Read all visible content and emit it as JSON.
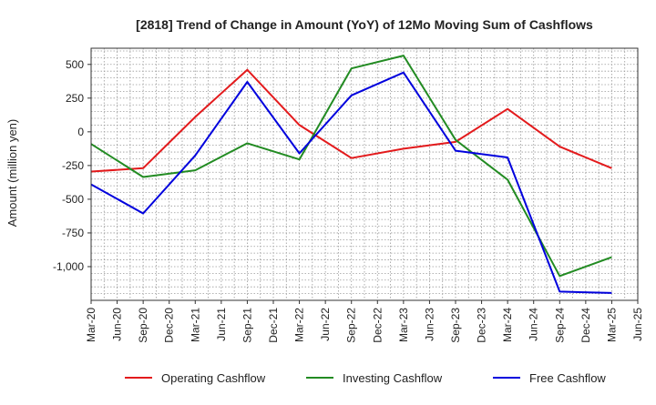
{
  "chart_data": {
    "type": "line",
    "title": "[2818]  Trend of Change in Amount (YoY) of 12Mo Moving Sum of Cashflows",
    "xlabel": "",
    "ylabel": "Amount (million yen)",
    "ylim": [
      -1250,
      620
    ],
    "yticks": [
      500,
      250,
      0,
      -250,
      -500,
      -750,
      -1000
    ],
    "ytick_labels": [
      "500",
      "250",
      "0",
      "-250",
      "-500",
      "-750",
      "-1,000"
    ],
    "categories": [
      "Mar-20",
      "Jun-20",
      "Sep-20",
      "Dec-20",
      "Mar-21",
      "Jun-21",
      "Sep-21",
      "Dec-21",
      "Mar-22",
      "Jun-22",
      "Sep-22",
      "Dec-22",
      "Mar-23",
      "Jun-23",
      "Sep-23",
      "Dec-23",
      "Mar-24",
      "Jun-24",
      "Sep-24",
      "Dec-24",
      "Mar-25",
      "Jun-25"
    ],
    "grid": true,
    "legend_position": "bottom",
    "series": [
      {
        "name": "Operating Cashflow",
        "color": "#e31a1c",
        "points": [
          [
            0,
            -295
          ],
          [
            2,
            -270
          ],
          [
            4,
            110
          ],
          [
            6,
            460
          ],
          [
            8,
            50
          ],
          [
            10,
            -195
          ],
          [
            12,
            -125
          ],
          [
            14,
            -75
          ],
          [
            16,
            170
          ],
          [
            18,
            -110
          ],
          [
            20,
            -270
          ]
        ]
      },
      {
        "name": "Investing Cashflow",
        "color": "#228b22",
        "points": [
          [
            0,
            -90
          ],
          [
            2,
            -335
          ],
          [
            4,
            -285
          ],
          [
            6,
            -85
          ],
          [
            8,
            -205
          ],
          [
            10,
            470
          ],
          [
            12,
            565
          ],
          [
            14,
            -60
          ],
          [
            16,
            -355
          ],
          [
            18,
            -1070
          ],
          [
            20,
            -930
          ]
        ]
      },
      {
        "name": "Free Cashflow",
        "color": "#0000dd",
        "points": [
          [
            0,
            -390
          ],
          [
            2,
            -605
          ],
          [
            4,
            -175
          ],
          [
            6,
            370
          ],
          [
            8,
            -160
          ],
          [
            10,
            270
          ],
          [
            12,
            440
          ],
          [
            14,
            -140
          ],
          [
            16,
            -190
          ],
          [
            18,
            -1185
          ],
          [
            20,
            -1195
          ]
        ]
      }
    ]
  }
}
